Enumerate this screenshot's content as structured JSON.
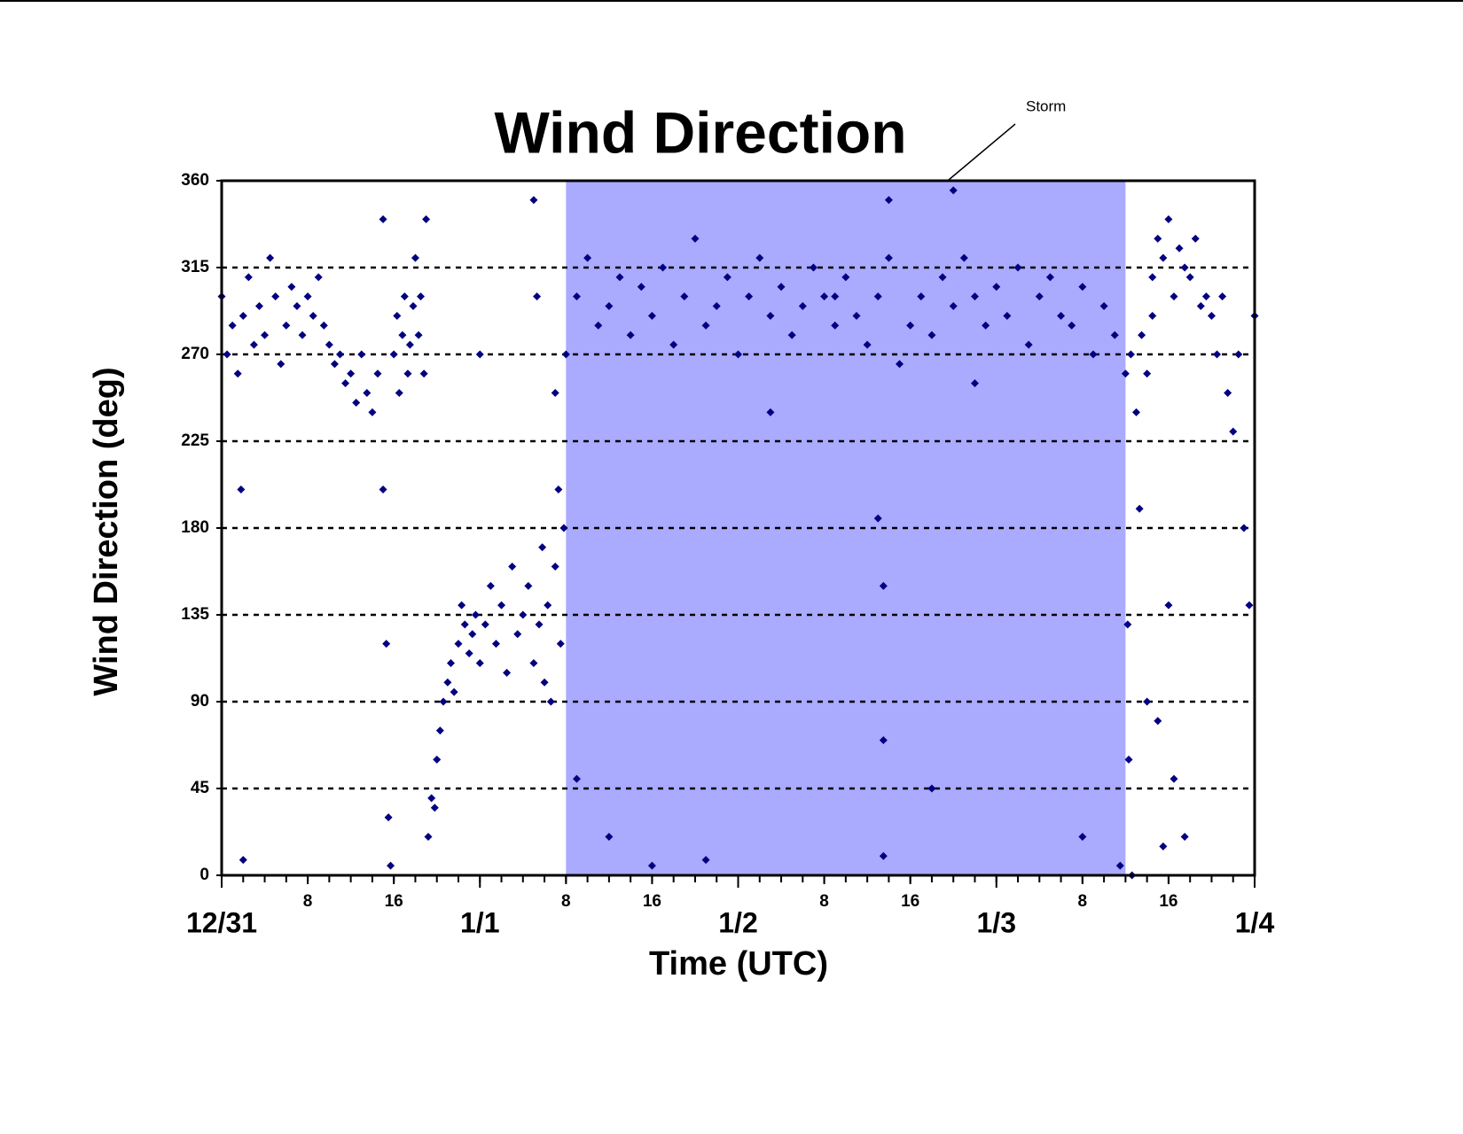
{
  "chart_data": {
    "type": "scatter",
    "title": "Wind Direction",
    "xlabel": "Time (UTC)",
    "ylabel": "Wind Direction (deg)",
    "annotation": "Storm",
    "shaded_region": [
      32,
      84
    ],
    "shade_color": "#aaaaff",
    "color": "#000080",
    "grid": true,
    "xlim": [
      0,
      96
    ],
    "ylim": [
      0,
      360
    ],
    "yticks": [
      0,
      45,
      90,
      135,
      180,
      225,
      270,
      315,
      360
    ],
    "xticks": [
      {
        "value": 0,
        "label": "12/31"
      },
      {
        "value": 8,
        "label": "8"
      },
      {
        "value": 16,
        "label": "16"
      },
      {
        "value": 24,
        "label": "1/1"
      },
      {
        "value": 32,
        "label": "8"
      },
      {
        "value": 40,
        "label": "16"
      },
      {
        "value": 48,
        "label": "1/2"
      },
      {
        "value": 56,
        "label": "8"
      },
      {
        "value": 64,
        "label": "16"
      },
      {
        "value": 72,
        "label": "1/3"
      },
      {
        "value": 80,
        "label": "8"
      },
      {
        "value": 88,
        "label": "16"
      },
      {
        "value": 96,
        "label": "1/4"
      }
    ],
    "xminor_ticks": [
      0,
      2,
      4,
      6,
      8,
      10,
      12,
      14,
      16,
      18,
      20,
      22,
      24,
      26,
      28,
      30,
      32,
      34,
      36,
      38,
      40,
      42,
      44,
      46,
      48,
      50,
      52,
      54,
      56,
      58,
      60,
      62,
      64,
      66,
      68,
      70,
      72,
      74,
      76,
      78,
      80,
      82,
      84,
      86,
      88,
      90,
      92,
      94,
      96
    ],
    "x": [
      0,
      0.5,
      1,
      1.5,
      2,
      2.5,
      3,
      3.5,
      4,
      4.5,
      5,
      5.5,
      6,
      6.5,
      7,
      7.5,
      8,
      8.5,
      9,
      9.5,
      10,
      10.5,
      11,
      11.5,
      12,
      12.5,
      13,
      13.5,
      14,
      14.5,
      15,
      15,
      15.3,
      15.5,
      15.7,
      16,
      16.3,
      16.5,
      16.8,
      17,
      17.3,
      17.5,
      17.8,
      18,
      18.3,
      18.5,
      18.8,
      19,
      19.2,
      19.5,
      19.8,
      20,
      20.3,
      20.6,
      21,
      21.3,
      21.6,
      22,
      22.3,
      22.6,
      23,
      23.3,
      23.6,
      24,
      24.5,
      25,
      25.5,
      26,
      26.5,
      27,
      27.5,
      28,
      28.5,
      29,
      29,
      29.3,
      29.5,
      29.8,
      30,
      30.3,
      30.6,
      31,
      31,
      31.3,
      31.5,
      31.8,
      32,
      33,
      34,
      35,
      36,
      37,
      38,
      39,
      40,
      41,
      42,
      43,
      44,
      45,
      46,
      47,
      48,
      49,
      50,
      51,
      52,
      53,
      54,
      55,
      56,
      57,
      58,
      59,
      60,
      61,
      62,
      63,
      64,
      65,
      66,
      67,
      68,
      69,
      70,
      71,
      72,
      73,
      74,
      75,
      76,
      77,
      78,
      79,
      80,
      81,
      82,
      83,
      84,
      33,
      36,
      40,
      45,
      51,
      57,
      61,
      61.5,
      61.5,
      61.5,
      62,
      66,
      70,
      80,
      83.5,
      68,
      84.5,
      85,
      85.5,
      86,
      86.5,
      84.2,
      84.3,
      84.6,
      85.3,
      86,
      86.5,
      87,
      87.5,
      88,
      88.5,
      89,
      89.5,
      90,
      90.5,
      91,
      91.5,
      87,
      87.5,
      88,
      88.5,
      89.5,
      92,
      92.5,
      93,
      93.5,
      94,
      94.5,
      95,
      95.5,
      96,
      1.8,
      2,
      24
    ],
    "values": [
      300,
      270,
      285,
      260,
      290,
      310,
      275,
      295,
      280,
      320,
      300,
      265,
      285,
      305,
      295,
      280,
      300,
      290,
      310,
      285,
      275,
      265,
      270,
      255,
      260,
      245,
      270,
      250,
      240,
      260,
      340,
      200,
      120,
      30,
      5,
      270,
      290,
      250,
      280,
      300,
      260,
      275,
      295,
      320,
      280,
      300,
      260,
      340,
      20,
      40,
      35,
      60,
      75,
      90,
      100,
      110,
      95,
      120,
      140,
      130,
      115,
      125,
      135,
      110,
      130,
      150,
      120,
      140,
      105,
      160,
      125,
      135,
      150,
      110,
      350,
      300,
      130,
      170,
      100,
      140,
      90,
      160,
      250,
      200,
      120,
      180,
      270,
      300,
      320,
      285,
      295,
      310,
      280,
      305,
      290,
      315,
      275,
      300,
      330,
      285,
      295,
      310,
      270,
      300,
      320,
      290,
      305,
      280,
      295,
      315,
      300,
      285,
      310,
      290,
      275,
      300,
      320,
      265,
      285,
      300,
      280,
      310,
      295,
      320,
      300,
      285,
      305,
      290,
      315,
      275,
      300,
      310,
      290,
      285,
      305,
      270,
      295,
      280,
      260,
      50,
      20,
      5,
      8,
      240,
      300,
      185,
      150,
      70,
      10,
      350,
      45,
      255,
      20,
      5,
      355,
      270,
      240,
      280,
      260,
      290,
      130,
      60,
      0,
      190,
      90,
      310,
      330,
      320,
      340,
      300,
      325,
      315,
      310,
      330,
      295,
      300,
      80,
      15,
      140,
      50,
      20,
      290,
      270,
      300,
      250,
      230,
      270,
      180,
      140,
      290,
      200,
      8,
      270
    ]
  }
}
